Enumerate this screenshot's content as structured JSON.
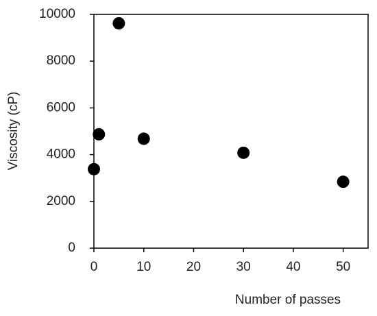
{
  "chart_data": {
    "type": "scatter",
    "x_label": "Number of passes",
    "y_label": "Viscosity (cP)",
    "series": [
      {
        "color": "#000000",
        "x": [
          0,
          1,
          5,
          10,
          30,
          50
        ],
        "values": [
          3380,
          4870,
          9620,
          4680,
          4080,
          2840
        ]
      }
    ],
    "xlim": [
      0,
      55
    ],
    "xticks": [
      0,
      10,
      20,
      30,
      40,
      50
    ],
    "ylim": [
      0,
      10000
    ],
    "yticks": [
      0,
      2000,
      4000,
      6000,
      8000,
      10000
    ]
  }
}
